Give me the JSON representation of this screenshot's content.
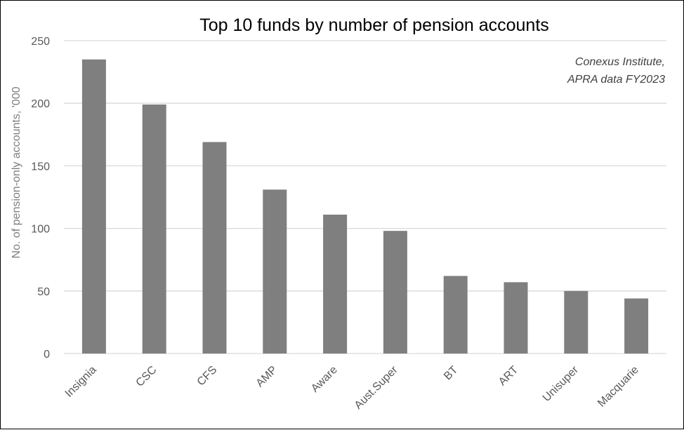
{
  "chart_data": {
    "type": "bar",
    "title": "Top 10 funds by number of pension accounts",
    "source_line1": "Conexus Institute,",
    "source_line2": "APRA data FY2023",
    "ylabel": "No. of pension-only accounts, '000",
    "xlabel": "",
    "categories": [
      "Insignia",
      "CSC",
      "CFS",
      "AMP",
      "Aware",
      "Aust.Super",
      "BT",
      "ART",
      "Unisuper",
      "Macquarie"
    ],
    "values": [
      235,
      199,
      169,
      131,
      111,
      98,
      62,
      57,
      50,
      44
    ],
    "ylim": [
      0,
      250
    ],
    "yticks": [
      0,
      50,
      100,
      150,
      200,
      250
    ],
    "grid": true,
    "bar_color": "#7f7f7f",
    "grid_color": "#d9d9d9"
  }
}
